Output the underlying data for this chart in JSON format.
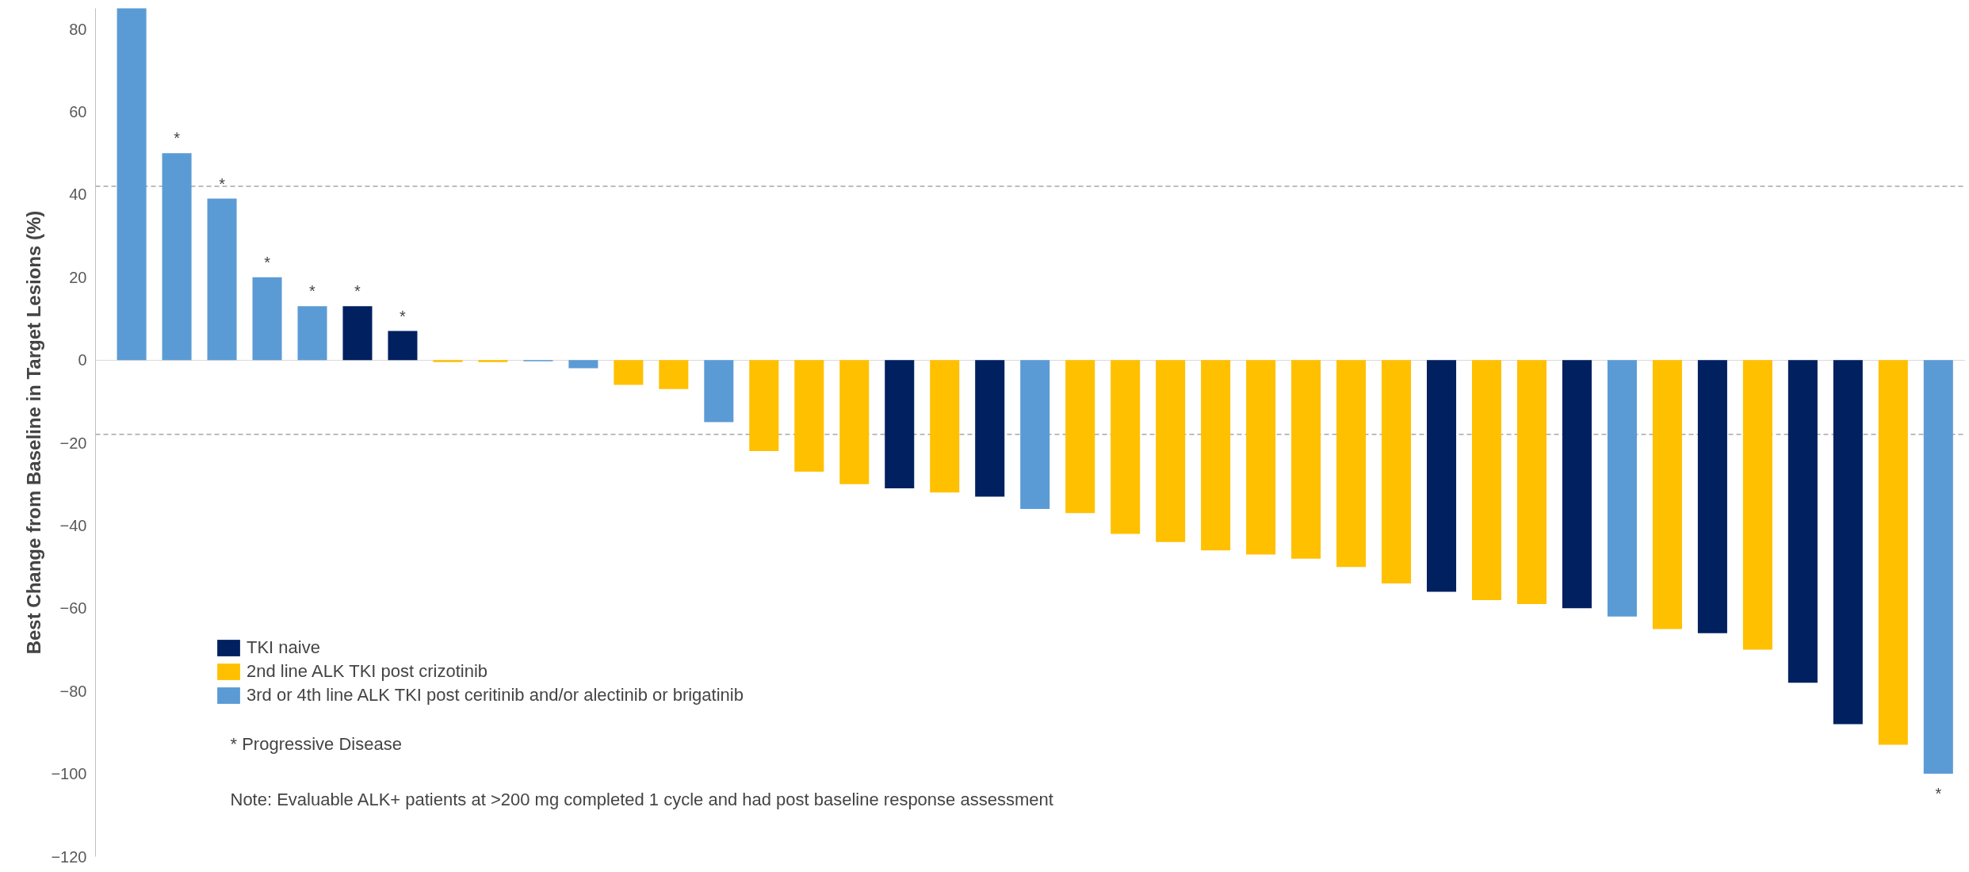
{
  "chart_data": {
    "type": "bar",
    "ylabel": "Best Change from Baseline in Target Lesions (%)",
    "categories": [
      null,
      null,
      null,
      null,
      null,
      null,
      null,
      null,
      null,
      null,
      null,
      null,
      null,
      null,
      null,
      null,
      null,
      null,
      null,
      null,
      null,
      null,
      null,
      null,
      null,
      null,
      null,
      null,
      null,
      null,
      null,
      null,
      null,
      null,
      null,
      null,
      null,
      null,
      null,
      null,
      null
    ],
    "series": [
      {
        "name": "TKI naive",
        "color": "#002060",
        "values": [
          null,
          null,
          null,
          null,
          null,
          13,
          7,
          null,
          null,
          null,
          null,
          null,
          null,
          null,
          null,
          null,
          null,
          -31,
          null,
          -33,
          null,
          null,
          null,
          null,
          null,
          null,
          null,
          null,
          null,
          -56,
          null,
          null,
          -60,
          null,
          null,
          -66,
          null,
          -78,
          -88,
          null,
          null
        ]
      },
      {
        "name": "2nd line ALK TKI post crizotinib",
        "color": "#ffc000",
        "values": [
          null,
          null,
          null,
          null,
          null,
          null,
          null,
          -0.5,
          -0.5,
          null,
          null,
          -6,
          -7,
          null,
          -22,
          -27,
          -30,
          null,
          -32,
          null,
          null,
          -37,
          -42,
          -44,
          -46,
          -47,
          -48,
          -50,
          -54,
          null,
          -58,
          -59,
          null,
          null,
          -65,
          null,
          -70,
          null,
          null,
          -93,
          null
        ]
      },
      {
        "name": "3rd or 4th line ALK TKI post ceritinib and/or alectinib or brigatinib",
        "color": "#5b9bd5",
        "values": [
          85,
          50,
          39,
          20,
          13,
          null,
          null,
          null,
          null,
          -0.3,
          -2,
          null,
          null,
          -15,
          null,
          null,
          null,
          null,
          null,
          null,
          -36,
          null,
          null,
          null,
          null,
          null,
          null,
          null,
          null,
          null,
          null,
          null,
          null,
          -62,
          null,
          null,
          null,
          null,
          null,
          null,
          -100
        ]
      }
    ],
    "value_labels": [
      null,
      "*",
      "*",
      "*",
      "*",
      "*",
      "*",
      null,
      null,
      null,
      null,
      null,
      null,
      null,
      null,
      null,
      null,
      null,
      null,
      null,
      null,
      null,
      null,
      null,
      null,
      null,
      null,
      null,
      null,
      null,
      null,
      null,
      null,
      null,
      null,
      null,
      null,
      null,
      null,
      null,
      "*"
    ],
    "ylim": [
      -120,
      85
    ],
    "yticks": [
      -120,
      -100,
      -80,
      -60,
      -40,
      -20,
      0,
      20,
      40,
      60,
      80
    ],
    "ref_lines": [
      {
        "axis": "y",
        "value": 42,
        "color": "#a6a6a6",
        "line_style": "dashed"
      },
      {
        "axis": "y",
        "value": -18,
        "color": "#a6a6a6",
        "line_style": "dashed"
      }
    ],
    "legend": "bottom left",
    "annotations": [
      "* Progressive Disease",
      "Note: Evaluable ALK+ patients at >200 mg completed 1 cycle and had post baseline response assessment"
    ]
  }
}
